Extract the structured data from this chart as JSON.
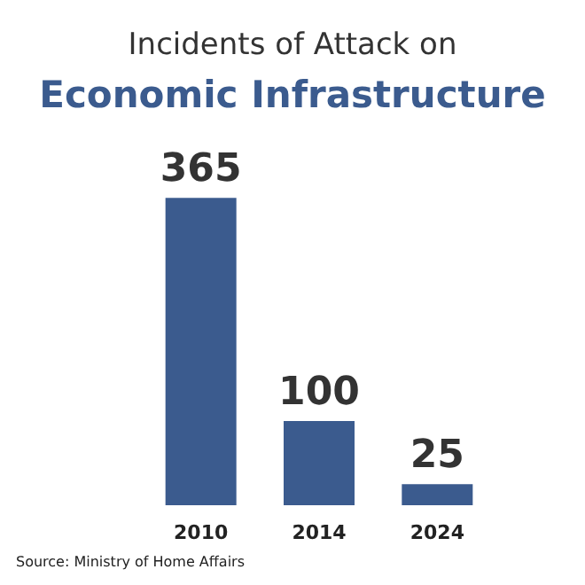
{
  "chart_data": {
    "type": "bar",
    "title": "Incidents of Attack on",
    "subtitle": "Economic Infrastructure",
    "categories": [
      "2010",
      "2014",
      "2024"
    ],
    "values": [
      365,
      100,
      25
    ],
    "color": "#3b5b8e",
    "data_labels": true,
    "annotations": [
      "Source: Ministry of Home Affairs"
    ]
  }
}
